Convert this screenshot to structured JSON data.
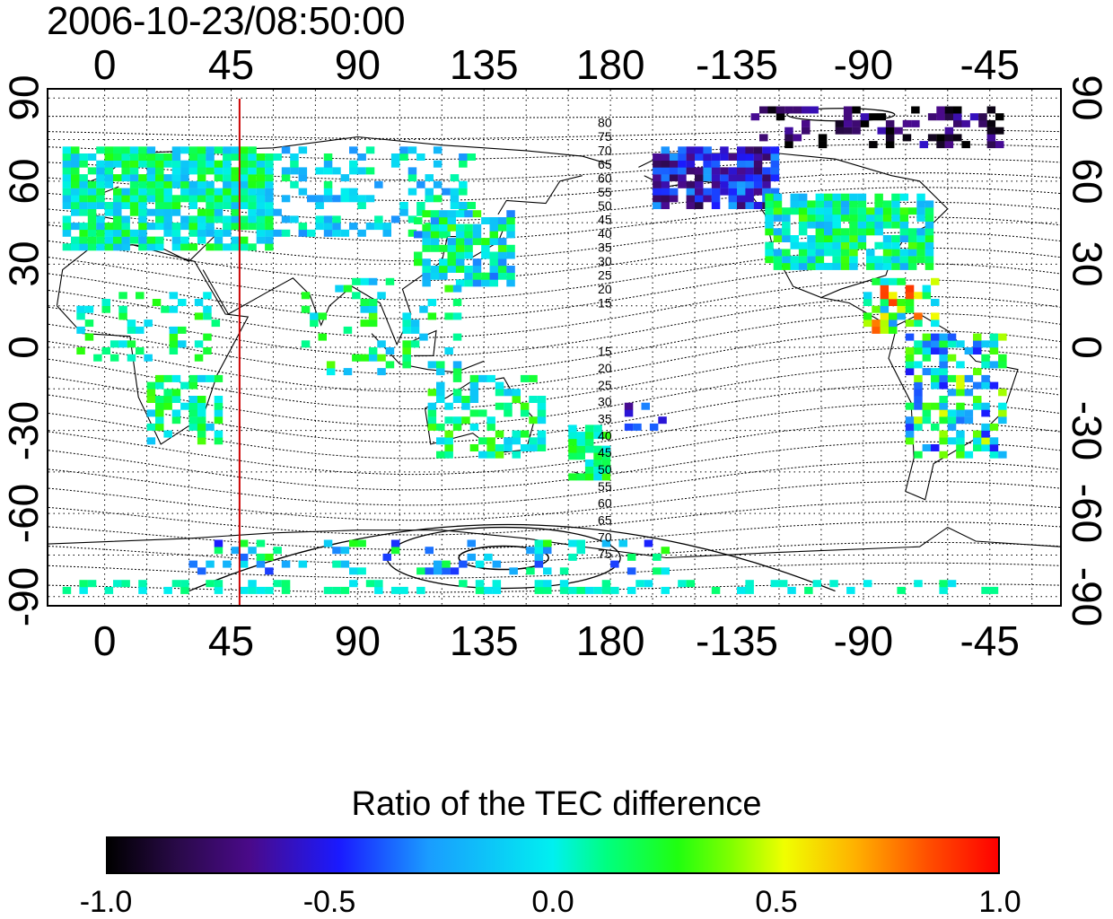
{
  "header": {
    "timestamp": "2006-10-23/08:50:00"
  },
  "map": {
    "x_ticks": [
      "0",
      "45",
      "90",
      "135",
      "180",
      "-135",
      "-90",
      "-45"
    ],
    "x_tick_lon": [
      0,
      45,
      90,
      135,
      180,
      225,
      270,
      315
    ],
    "y_ticks": [
      "90",
      "60",
      "30",
      "0",
      "-30",
      "-60",
      "-90"
    ],
    "y_tick_lat": [
      90,
      60,
      30,
      0,
      -30,
      -60,
      -90
    ],
    "lon_range": [
      -20,
      340
    ],
    "lat_range": [
      -93,
      93
    ],
    "marker_longitude": 48,
    "marker_color": "#cc0000",
    "contour_labels_north": [
      "80",
      "75",
      "70",
      "65",
      "60",
      "55",
      "50",
      "45",
      "40",
      "35",
      "30",
      "25",
      "20",
      "15"
    ],
    "contour_labels_south": [
      "15",
      "20",
      "25",
      "30",
      "35",
      "40",
      "45",
      "50",
      "55",
      "60",
      "65",
      "70",
      "75"
    ]
  },
  "colorbar": {
    "title": "Ratio of the TEC difference",
    "labels": [
      "-1.0",
      "-0.5",
      "0.0",
      "0.5",
      "1.0"
    ],
    "range": [
      -1.0,
      1.0
    ]
  }
}
